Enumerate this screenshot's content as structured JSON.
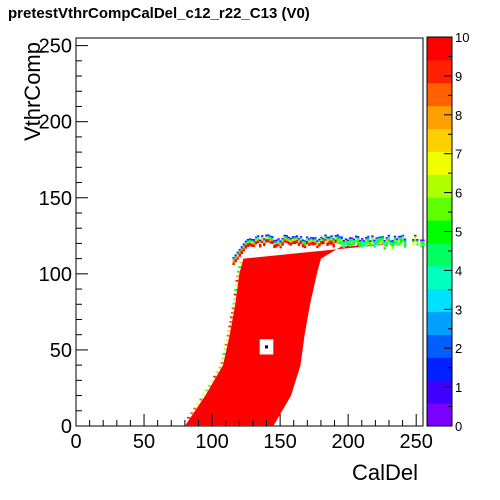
{
  "title": "pretestVthrCompCalDel_c12_r22_C13 (V0)",
  "chart_data": {
    "type": "heatmap",
    "title": "pretestVthrCompCalDel_c12_r22_C13 (V0)",
    "xlabel": "CalDel",
    "ylabel": "VthrComp",
    "xlim": [
      0,
      255
    ],
    "ylim": [
      0,
      255
    ],
    "zlim": [
      0,
      10
    ],
    "x_ticks": [
      "0",
      "50",
      "100",
      "150",
      "200",
      "250"
    ],
    "y_ticks": [
      "0",
      "50",
      "100",
      "150",
      "200",
      "250"
    ],
    "z_ticks": [
      "0",
      "1",
      "2",
      "3",
      "4",
      "5",
      "6",
      "7",
      "8",
      "9",
      "10"
    ],
    "palette": [
      "#7a00ff",
      "#4000ff",
      "#0020ff",
      "#0060ff",
      "#00a0ff",
      "#00e0ff",
      "#00ffc0",
      "#00ff60",
      "#00ff00",
      "#60ff00",
      "#b0ff00",
      "#f0ff00",
      "#ffd000",
      "#ffa000",
      "#ff6000",
      "#ff2000",
      "#ff0000"
    ],
    "region": {
      "description_value": 10,
      "left_edge": [
        [
          0,
          80
        ],
        [
          20,
          95
        ],
        [
          40,
          108
        ],
        [
          60,
          113
        ],
        [
          80,
          117
        ],
        [
          100,
          120
        ],
        [
          110,
          123
        ]
      ],
      "right_edge": [
        [
          0,
          145
        ],
        [
          20,
          158
        ],
        [
          40,
          165
        ],
        [
          60,
          168
        ],
        [
          80,
          172
        ],
        [
          100,
          177
        ],
        [
          110,
          180
        ],
        [
          118,
          195
        ],
        [
          120,
          235
        ]
      ],
      "top_edge": [
        [
          123,
          110
        ],
        [
          125,
          150
        ],
        [
          124,
          180
        ],
        [
          122,
          230
        ],
        [
          124,
          255
        ]
      ]
    },
    "hole": {
      "x": 140,
      "y": 52,
      "value": 0
    }
  }
}
